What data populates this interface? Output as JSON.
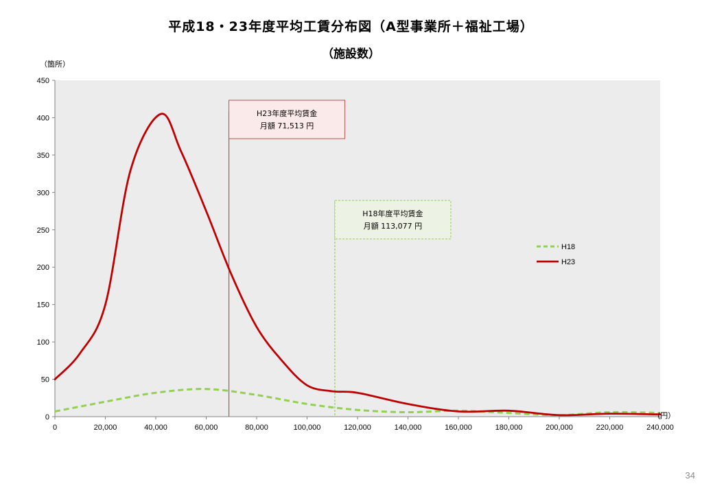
{
  "title": "平成18・23年度平均工賃分布図（A型事業所＋福祉工場）",
  "subtitle": "（施設数）",
  "page_number": "34",
  "colors": {
    "plot_bg": "#ececec",
    "h18": "#92d050",
    "h23": "#c00000",
    "h23_vline": "#b0594f",
    "h18_vline": "#92d050",
    "h23_box_bg": "#fbeaea",
    "h18_box_bg": "#ecf3e4"
  },
  "chart_data": {
    "type": "line",
    "title": "平成18・23年度平均工賃分布図（A型事業所＋福祉工場）",
    "subtitle": "（施設数）",
    "ylabel": "（箇所）",
    "xlabel": "(円）",
    "xlim": [
      0,
      240000
    ],
    "ylim": [
      0,
      450
    ],
    "x_ticks": [
      0,
      20000,
      40000,
      60000,
      80000,
      100000,
      120000,
      140000,
      160000,
      180000,
      200000,
      220000,
      240000
    ],
    "x_tick_labels": [
      "0",
      "20,000",
      "40,000",
      "60,000",
      "80,000",
      "100,000",
      "120,000",
      "140,000",
      "160,000",
      "180,000",
      "200,000",
      "220,000",
      "240,000"
    ],
    "y_ticks": [
      0,
      50,
      100,
      150,
      200,
      250,
      300,
      350,
      400,
      450
    ],
    "y_tick_labels": [
      "0",
      "50",
      "100",
      "150",
      "200",
      "250",
      "300",
      "350",
      "400",
      "450"
    ],
    "grid": false,
    "legend_position": "right",
    "series": [
      {
        "name": "H18",
        "style": "dashed",
        "x": [
          0,
          20000,
          40000,
          60000,
          80000,
          100000,
          120000,
          140000,
          160000,
          180000,
          200000,
          220000,
          240000
        ],
        "y": [
          7,
          20,
          32,
          37,
          29,
          17,
          9,
          6,
          8,
          5,
          2,
          6,
          5
        ]
      },
      {
        "name": "H23",
        "style": "solid",
        "x": [
          0,
          10000,
          20000,
          30000,
          42000,
          50000,
          60000,
          70000,
          80000,
          90000,
          100000,
          110000,
          120000,
          140000,
          160000,
          180000,
          200000,
          220000,
          240000
        ],
        "y": [
          50,
          85,
          150,
          330,
          405,
          355,
          275,
          190,
          120,
          75,
          42,
          34,
          32,
          17,
          7,
          8,
          2,
          4,
          3
        ]
      }
    ],
    "annotations": [
      {
        "id": "h23",
        "x_value": 69000,
        "line1": "H23年度平均賃金",
        "line2": "月額 71,513 円"
      },
      {
        "id": "h18",
        "x_value": 111000,
        "line1": "H18年度平均賃金",
        "line2": "月額 113,077 円"
      }
    ]
  }
}
